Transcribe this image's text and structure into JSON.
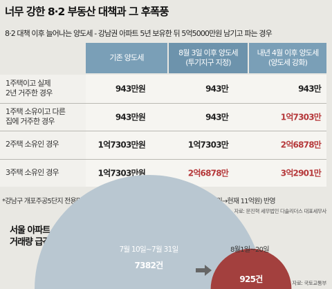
{
  "title": "너무 강한 8·2 부동산 대책과 그 후폭풍",
  "subtitle": "8·2 대책 이후 늘어나는 양도세 - 강남권 아파트 5년 보유한 뒤 5억5000만원 남기고 파는 경우",
  "chart_data": [
    {
      "type": "table",
      "columns": [
        {
          "line1": "기존 양도세",
          "line2": ""
        },
        {
          "line1": "8월 3일 이후 양도세",
          "line2": "(투기지구 지정)"
        },
        {
          "line1": "내년 4월 이후 양도세",
          "line2": "(양도세 강화)"
        }
      ],
      "rows": [
        {
          "label_line1": "1주택이고 실제",
          "label_line2": "2년 거주한 경우",
          "values": [
            "943만원",
            "943만",
            "943만"
          ],
          "highlight": [
            false,
            false,
            false
          ]
        },
        {
          "label_line1": "1주택 소유이고 다른",
          "label_line2": "집에 거주한 경우",
          "values": [
            "943만원",
            "943만",
            "1억7303만"
          ],
          "highlight": [
            false,
            false,
            true
          ]
        },
        {
          "label_line1": "2주택 소유인 경우",
          "label_line2": "",
          "values": [
            "1억7303만원",
            "1억7303만",
            "2억6878만"
          ],
          "highlight": [
            false,
            false,
            true
          ]
        },
        {
          "label_line1": "3주택 소유인 경우",
          "label_line2": "",
          "values": [
            "1억7303만원",
            "2억6878만",
            "3억2901만"
          ],
          "highlight": [
            false,
            true,
            true
          ]
        }
      ],
      "highlight_color": "#b5383a"
    },
    {
      "type": "pie",
      "title_line1": "서울 아파트",
      "title_line2": "거래량 급감",
      "categories": [
        "7월 10일~7월 31일",
        "8월1일~20일"
      ],
      "values": [
        7382,
        925
      ],
      "value_labels": [
        "7382건",
        "925건"
      ],
      "colors": [
        "#b9c7d1",
        "#a3403e"
      ]
    }
  ],
  "footnote": "*강남구 개포주공5단지 전용면적 54㎡의 실제 가격 변화(2012년 8월 5억5000만원→현재 11억원) 반영",
  "source1": "자료: 문진혁 세무법인 다솔리더스 대표세무사",
  "source2": "자료: 국토교통부"
}
